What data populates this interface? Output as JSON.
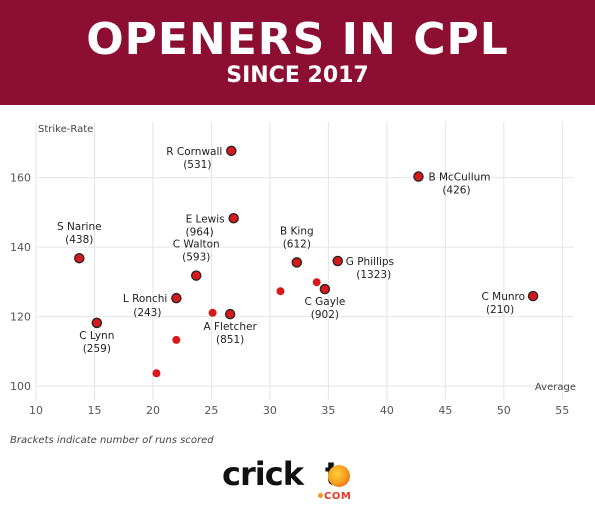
{
  "header": {
    "title": "OPENERS IN CPL",
    "subtitle": "SINCE 2017"
  },
  "footnote": "Brackets indicate number of runs scored",
  "logo": {
    "word": "cricket",
    "suffix": "COM"
  },
  "colors": {
    "banner": "#8c0f33",
    "point": "#d7191c",
    "grid": "#e4e4e4"
  },
  "chart_data": {
    "type": "scatter",
    "ylabel": "Strike-Rate",
    "xlabel": "Average",
    "xlim": [
      10,
      56
    ],
    "ylim": [
      96,
      176
    ],
    "xticks": [
      10,
      15,
      20,
      25,
      30,
      35,
      40,
      45,
      50,
      55
    ],
    "yticks": [
      100,
      120,
      140,
      160
    ],
    "grid": true,
    "points": [
      {
        "name": "R Cornwall",
        "runs": "(531)",
        "x": 26.7,
        "y": 167.7,
        "labeled": true,
        "outline": true
      },
      {
        "name": "B McCullum",
        "runs": "(426)",
        "x": 42.7,
        "y": 160.3,
        "labeled": true,
        "outline": true
      },
      {
        "name": "E Lewis",
        "runs": "(964)",
        "x": 26.9,
        "y": 148.3,
        "labeled": true,
        "outline": true
      },
      {
        "name": "S Narine",
        "runs": "(438)",
        "x": 13.7,
        "y": 136.8,
        "labeled": true,
        "outline": true
      },
      {
        "name": "B King",
        "runs": "(612)",
        "x": 32.3,
        "y": 135.6,
        "labeled": true,
        "outline": true
      },
      {
        "name": "G Phillips",
        "runs": "(1323)",
        "x": 35.8,
        "y": 136.0,
        "labeled": true,
        "outline": true
      },
      {
        "name": "C Walton",
        "runs": "(593)",
        "x": 23.7,
        "y": 131.8,
        "labeled": true,
        "outline": true
      },
      {
        "name": "C Gayle",
        "runs": "(902)",
        "x": 34.7,
        "y": 127.9,
        "labeled": true,
        "outline": true
      },
      {
        "name": "C Munro",
        "runs": "(210)",
        "x": 52.5,
        "y": 125.9,
        "labeled": true,
        "outline": true
      },
      {
        "name": "L Ronchi",
        "runs": "(243)",
        "x": 22.0,
        "y": 125.3,
        "labeled": true,
        "outline": true
      },
      {
        "name": "A Fletcher",
        "runs": "(851)",
        "x": 26.6,
        "y": 120.7,
        "labeled": true,
        "outline": true
      },
      {
        "name": "C Lynn",
        "runs": "(259)",
        "x": 15.2,
        "y": 118.2,
        "labeled": true,
        "outline": true
      },
      {
        "name": "",
        "runs": "",
        "x": 34.0,
        "y": 129.9,
        "labeled": false,
        "outline": false
      },
      {
        "name": "",
        "runs": "",
        "x": 30.9,
        "y": 127.3,
        "labeled": false,
        "outline": false
      },
      {
        "name": "",
        "runs": "",
        "x": 25.1,
        "y": 121.1,
        "labeled": false,
        "outline": false
      },
      {
        "name": "",
        "runs": "",
        "x": 22.0,
        "y": 113.3,
        "labeled": false,
        "outline": false
      },
      {
        "name": "",
        "runs": "",
        "x": 20.3,
        "y": 103.7,
        "labeled": false,
        "outline": false
      }
    ]
  }
}
